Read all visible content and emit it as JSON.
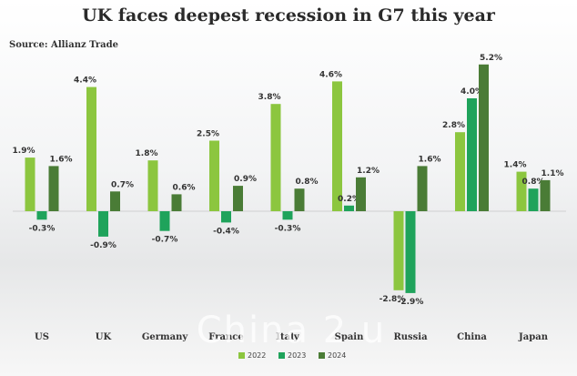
{
  "title": "UK faces deepest recession in G7 this year",
  "source": "Source: Allianz Trade",
  "watermark": "China 2 u",
  "colors": {
    "series": [
      "#8cc63f",
      "#1fa35b",
      "#4a7c36"
    ],
    "text": "#333333",
    "axis": "#555555"
  },
  "chart_data": {
    "type": "bar",
    "title": "UK faces deepest recession in G7 this year",
    "xlabel": "",
    "ylabel": "",
    "ylim": [
      -3.0,
      5.4
    ],
    "grid": false,
    "legend_position": "bottom-center",
    "categories": [
      "US",
      "UK",
      "Germany",
      "France",
      "Italy",
      "Spain",
      "Russia",
      "China",
      "Japan"
    ],
    "series": [
      {
        "name": "2022",
        "values": [
          1.9,
          4.4,
          1.8,
          2.5,
          3.8,
          4.6,
          -2.8,
          2.8,
          1.4
        ]
      },
      {
        "name": "2023",
        "values": [
          -0.3,
          -0.9,
          -0.7,
          -0.4,
          -0.3,
          0.2,
          -2.9,
          4.0,
          0.8
        ]
      },
      {
        "name": "2024",
        "values": [
          1.6,
          0.7,
          0.6,
          0.9,
          0.8,
          1.2,
          1.6,
          5.2,
          1.1
        ]
      }
    ],
    "value_labels": [
      [
        "1.9%",
        "4.4%",
        "1.8%",
        "2.5%",
        "3.8%",
        "4.6%",
        "-2.8%",
        "2.8%",
        "1.4%"
      ],
      [
        "-0.3%",
        "-0.9%",
        "-0.7%",
        "-0.4%",
        "-0.3%",
        "0.2%",
        "-2.9%",
        "4.0%",
        "0.8%"
      ],
      [
        "1.6%",
        "0.7%",
        "0.6%",
        "0.9%",
        "0.8%",
        "1.2%",
        "1.6%",
        "5.2%",
        "1.1%"
      ]
    ]
  }
}
